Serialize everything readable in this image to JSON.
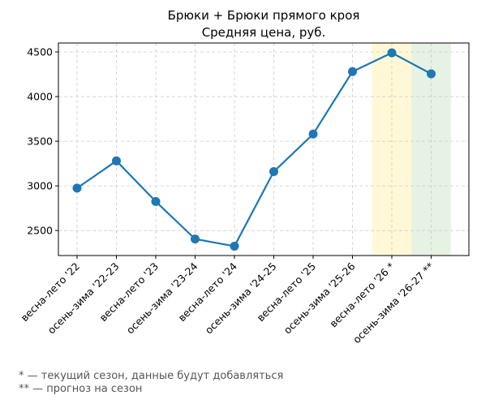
{
  "chart_data": {
    "type": "line",
    "title": "Брюки + Брюки прямого кроя",
    "subtitle": "Средняя цена, руб.",
    "xlabel": "",
    "ylabel": "",
    "categories": [
      "весна-лето '22",
      "осень-зима '22-23",
      "весна-лето '23",
      "осень-зима '23-24",
      "весна-лето '24",
      "осень-зима '24-25",
      "весна-лето '25",
      "осень-зима '25-26",
      "весна-лето '26 *",
      "осень-зима '26-27 **"
    ],
    "series": [
      {
        "values": [
          2975,
          3280,
          2825,
          2405,
          2325,
          3160,
          3580,
          4280,
          4490,
          4255
        ]
      }
    ],
    "ylim": [
      2220,
      4600
    ],
    "yticks": [
      2500,
      3000,
      3500,
      4000,
      4500
    ],
    "grid": true,
    "line_color": "#1f77b4",
    "highlights": [
      {
        "category_index": 8,
        "color": "#fff8d6",
        "meaning": "current"
      },
      {
        "category_index": 9,
        "color": "#e6f2e3",
        "meaning": "forecast"
      }
    ]
  },
  "footnotes": {
    "current": "* — текущий сезон, данные будут добавляться",
    "forecast": "** — прогноз на сезон"
  }
}
